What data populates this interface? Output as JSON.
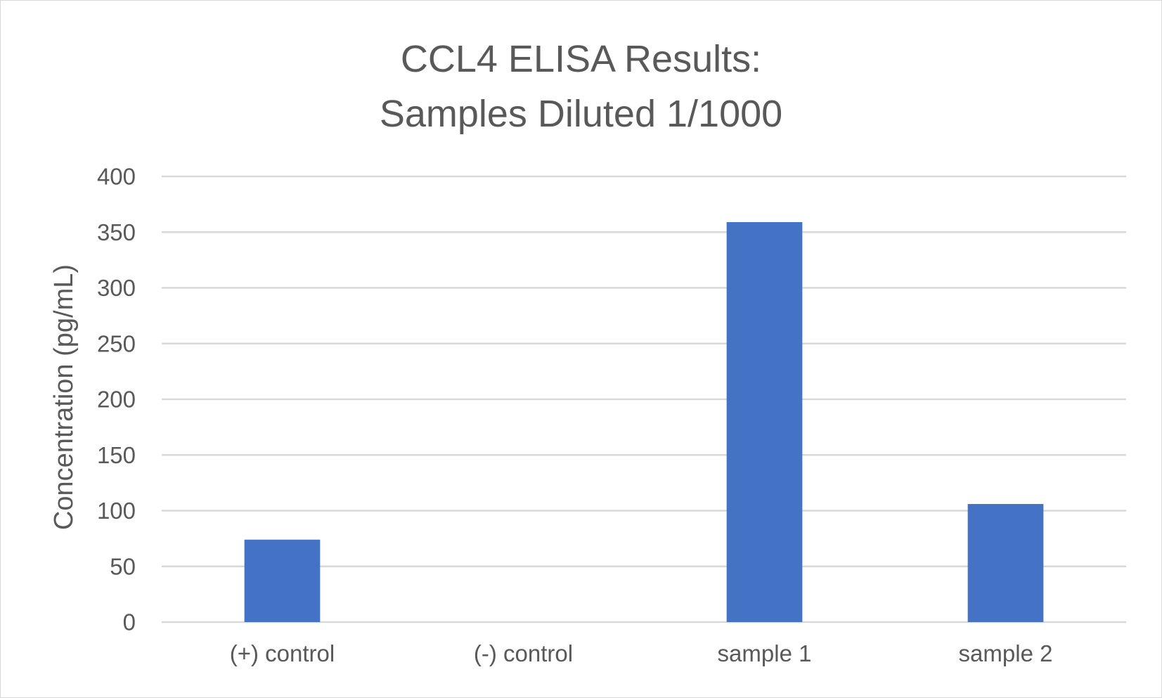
{
  "chart_data": {
    "type": "bar",
    "title_lines": [
      "CCL4 ELISA Results:",
      "Samples Diluted 1/1000"
    ],
    "xlabel": "",
    "ylabel": "Concentration (pg/mL)",
    "categories": [
      "(+) control",
      "(-) control",
      "sample 1",
      "sample 2"
    ],
    "values": [
      74,
      0,
      359,
      106
    ],
    "ylim": [
      0,
      400
    ],
    "yticks": [
      0,
      50,
      100,
      150,
      200,
      250,
      300,
      350,
      400
    ],
    "grid": true,
    "legend": "none",
    "colors": {
      "bar": "#4472C4",
      "gridline": "#d9d9d9",
      "text": "#595959"
    }
  }
}
